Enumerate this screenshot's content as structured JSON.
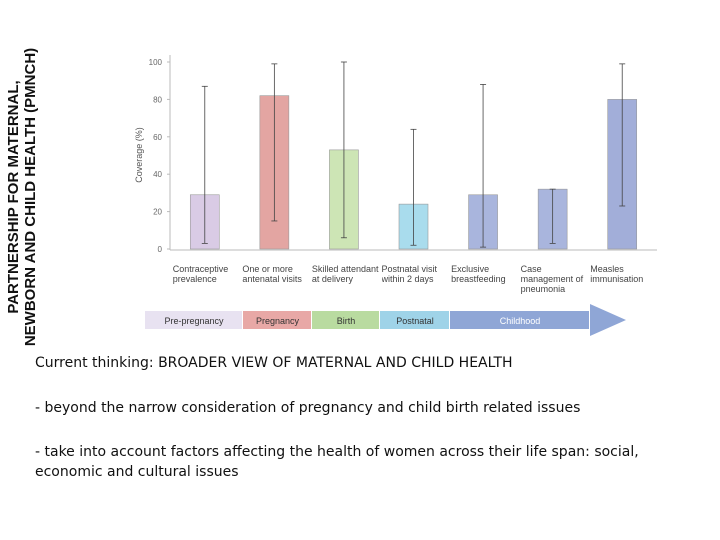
{
  "side_title": "PARTNERSHIP FOR MATERNAL, NEWBORN AND CHILD HEALTH (PMNCH)",
  "chart_data": {
    "type": "bar",
    "y_label": "Coverage (%)",
    "categories": [
      "Contraceptive prevalence",
      "One or more antenatal visits",
      "Skilled attendant at delivery",
      "Postnatal visit within 2 days",
      "Exclusive breastfeeding",
      "Case management of pneumonia",
      "Measles immunisation"
    ],
    "values": [
      29,
      82,
      53,
      24,
      29,
      32,
      80
    ],
    "low": [
      3,
      15,
      6,
      2,
      1,
      3,
      23
    ],
    "high": [
      87,
      99,
      100,
      64,
      88,
      32,
      99
    ],
    "colors": [
      "#d9cbe5",
      "#e3a5a2",
      "#cde5b5",
      "#a9dced",
      "#a9b5dd",
      "#a9b5dd",
      "#a2aed9"
    ],
    "ylim": [
      0,
      100
    ],
    "yticks": [
      0,
      20,
      40,
      60,
      80,
      100
    ],
    "phases": [
      {
        "label": "Pre-pregnancy",
        "color": "#d9cfe8"
      },
      {
        "label": "Pregnancy",
        "color": "#e8a8a6"
      },
      {
        "label": "Birth",
        "color": "#b9dba0"
      },
      {
        "label": "Postnatal",
        "color": "#9fd3e8"
      },
      {
        "label": "Childhood",
        "color": "#8fa6d6"
      }
    ]
  },
  "text": {
    "heading": "Current thinking: BROADER VIEW OF MATERNAL AND CHILD HEALTH",
    "bullets": [
      "- beyond the narrow consideration of pregnancy and child birth related issues",
      "- take into account factors affecting the health of women across their life span: social, economic and cultural issues"
    ]
  }
}
